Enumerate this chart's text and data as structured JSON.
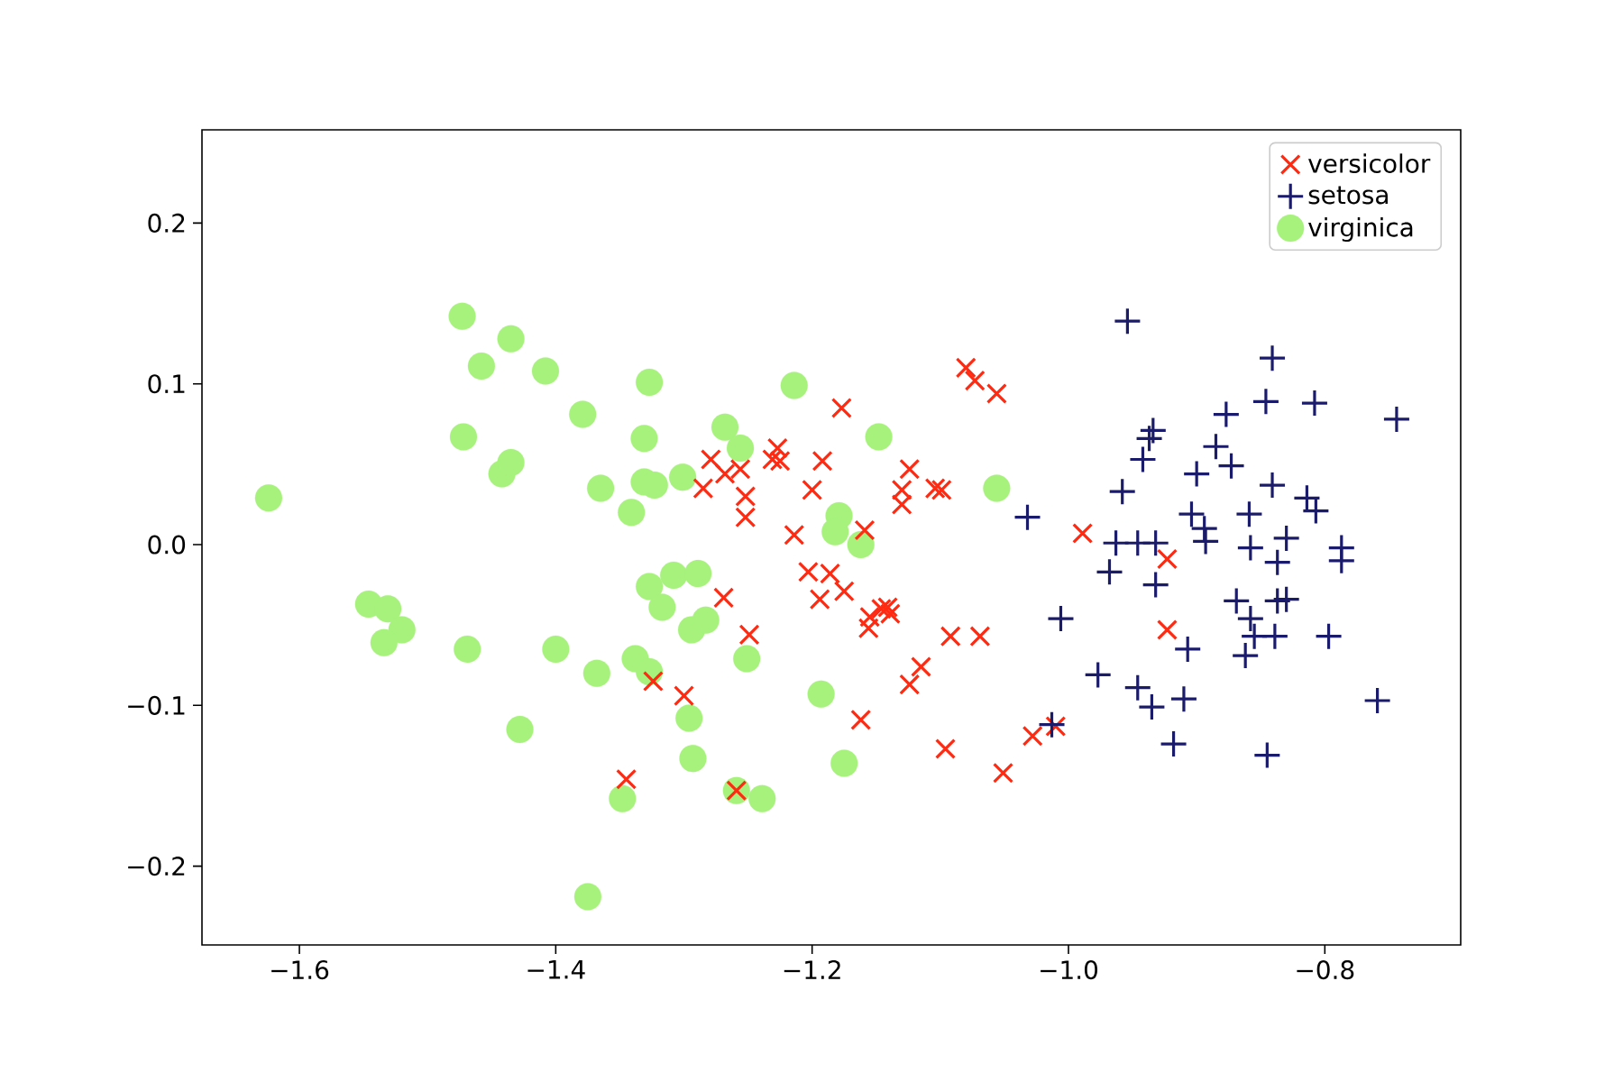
{
  "chart_data": {
    "type": "scatter",
    "xlim": [
      -1.676,
      -0.694
    ],
    "ylim": [
      -0.249,
      0.258
    ],
    "xticks": [
      {
        "value": -1.6,
        "label": "−1.6"
      },
      {
        "value": -1.4,
        "label": "−1.4"
      },
      {
        "value": -1.2,
        "label": "−1.2"
      },
      {
        "value": -1.0,
        "label": "−1.0"
      },
      {
        "value": -0.8,
        "label": "−0.8"
      }
    ],
    "yticks": [
      {
        "value": -0.2,
        "label": "−0.2"
      },
      {
        "value": -0.1,
        "label": "−0.1"
      },
      {
        "value": 0.0,
        "label": "0.0"
      },
      {
        "value": 0.1,
        "label": "0.1"
      },
      {
        "value": 0.2,
        "label": "0.2"
      }
    ],
    "legend": "top right",
    "series": [
      {
        "name": "versicolor",
        "color": "#ff2a12",
        "marker": "cross",
        "x": [
          -1.08,
          -1.073,
          -1.056,
          -1.177,
          -1.279,
          -1.268,
          -1.285,
          -1.256,
          -1.252,
          -1.252,
          -1.227,
          -1.225,
          -1.231,
          -1.192,
          -1.2,
          -1.124,
          -1.13,
          -1.13,
          -1.104,
          -1.099,
          -1.214,
          -1.159,
          -0.989,
          -1.203,
          -1.186,
          -1.194,
          -1.175,
          -1.156,
          -1.155,
          -1.146,
          -1.141,
          -1.139,
          -1.269,
          -1.249,
          -1.324,
          -1.3,
          -1.162,
          -1.124,
          -1.115,
          -1.092,
          -1.069,
          -1.096,
          -1.051,
          -1.028,
          -1.345,
          -1.259,
          -0.923,
          -0.923,
          -1.01
        ],
        "values": [
          0.11,
          0.102,
          0.094,
          0.085,
          0.053,
          0.044,
          0.035,
          0.047,
          0.03,
          0.017,
          0.06,
          0.052,
          0.053,
          0.052,
          0.034,
          0.047,
          0.034,
          0.025,
          0.035,
          0.034,
          0.006,
          0.009,
          0.007,
          -0.017,
          -0.018,
          -0.034,
          -0.029,
          -0.052,
          -0.045,
          -0.04,
          -0.039,
          -0.043,
          -0.033,
          -0.056,
          -0.085,
          -0.094,
          -0.109,
          -0.087,
          -0.076,
          -0.057,
          -0.057,
          -0.127,
          -0.142,
          -0.119,
          -0.146,
          -0.153,
          -0.009,
          -0.053,
          -0.113
        ]
      },
      {
        "name": "setosa",
        "color": "#1b1b6b",
        "marker": "plus",
        "x": [
          -0.954,
          -0.841,
          -0.846,
          -0.808,
          -0.744,
          -0.877,
          -0.934,
          -0.937,
          -0.885,
          -0.873,
          -0.942,
          -0.9,
          -0.958,
          -0.841,
          -0.904,
          -0.894,
          -0.859,
          -0.814,
          -0.807,
          -0.83,
          -0.963,
          -0.946,
          -0.932,
          -0.787,
          -0.893,
          -0.858,
          -0.837,
          -0.787,
          -0.968,
          -0.932,
          -0.869,
          -0.858,
          -0.837,
          -0.83,
          -0.855,
          -0.839,
          -0.862,
          -0.797,
          -1.006,
          -0.907,
          -0.977,
          -0.946,
          -0.935,
          -0.91,
          -0.759,
          -0.918,
          -0.845,
          -1.013,
          -1.032
        ],
        "values": [
          0.139,
          0.116,
          0.089,
          0.088,
          0.078,
          0.081,
          0.071,
          0.066,
          0.061,
          0.049,
          0.053,
          0.044,
          0.033,
          0.037,
          0.019,
          0.01,
          0.019,
          0.029,
          0.021,
          0.004,
          0.001,
          0.001,
          0.001,
          -0.002,
          0.002,
          -0.002,
          -0.011,
          -0.01,
          -0.017,
          -0.025,
          -0.035,
          -0.046,
          -0.035,
          -0.034,
          -0.057,
          -0.057,
          -0.069,
          -0.057,
          -0.046,
          -0.065,
          -0.081,
          -0.089,
          -0.101,
          -0.096,
          -0.097,
          -0.124,
          -0.131,
          -0.112,
          0.017
        ]
      },
      {
        "name": "virginica",
        "color": "#a6f27c",
        "marker": "circle",
        "x": [
          -1.624,
          -1.473,
          -1.458,
          -1.435,
          -1.408,
          -1.472,
          -1.442,
          -1.435,
          -1.379,
          -1.365,
          -1.327,
          -1.331,
          -1.331,
          -1.323,
          -1.301,
          -1.341,
          -1.546,
          -1.531,
          -1.52,
          -1.534,
          -1.469,
          -1.4,
          -1.368,
          -1.428,
          -1.375,
          -1.327,
          -1.308,
          -1.289,
          -1.317,
          -1.294,
          -1.283,
          -1.251,
          -1.338,
          -1.327,
          -1.296,
          -1.293,
          -1.259,
          -1.239,
          -1.348,
          -1.193,
          -1.175,
          -1.214,
          -1.268,
          -1.256,
          -1.148,
          -1.179,
          -1.182,
          -1.162,
          -1.056
        ],
        "values": [
          0.029,
          0.142,
          0.111,
          0.128,
          0.108,
          0.067,
          0.044,
          0.051,
          0.081,
          0.035,
          0.101,
          0.066,
          0.039,
          0.037,
          0.042,
          0.02,
          -0.037,
          -0.04,
          -0.053,
          -0.061,
          -0.065,
          -0.065,
          -0.08,
          -0.115,
          -0.219,
          -0.026,
          -0.019,
          -0.018,
          -0.039,
          -0.053,
          -0.047,
          -0.071,
          -0.071,
          -0.079,
          -0.108,
          -0.133,
          -0.153,
          -0.158,
          -0.158,
          -0.093,
          -0.136,
          0.099,
          0.073,
          0.06,
          0.067,
          0.018,
          0.008,
          0.0,
          0.035
        ]
      }
    ]
  }
}
